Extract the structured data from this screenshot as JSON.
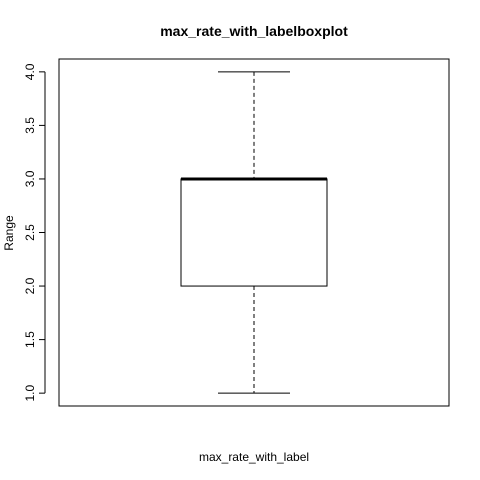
{
  "chart_data": {
    "type": "boxplot",
    "title": "max_rate_with_labelboxplot",
    "xlabel": "max_rate_with_label",
    "ylabel": "Range",
    "ylim": [
      0.88,
      4.12
    ],
    "yticks": [
      1.0,
      1.5,
      2.0,
      2.5,
      3.0,
      3.5,
      4.0
    ],
    "ytick_labels": [
      "1.0",
      "1.5",
      "2.0",
      "2.5",
      "3.0",
      "3.5",
      "4.0"
    ],
    "box": {
      "min": 1.0,
      "q1": 2.0,
      "median": 3.0,
      "q3": 3.0,
      "max": 4.0
    },
    "grid": false,
    "legend": "none"
  }
}
